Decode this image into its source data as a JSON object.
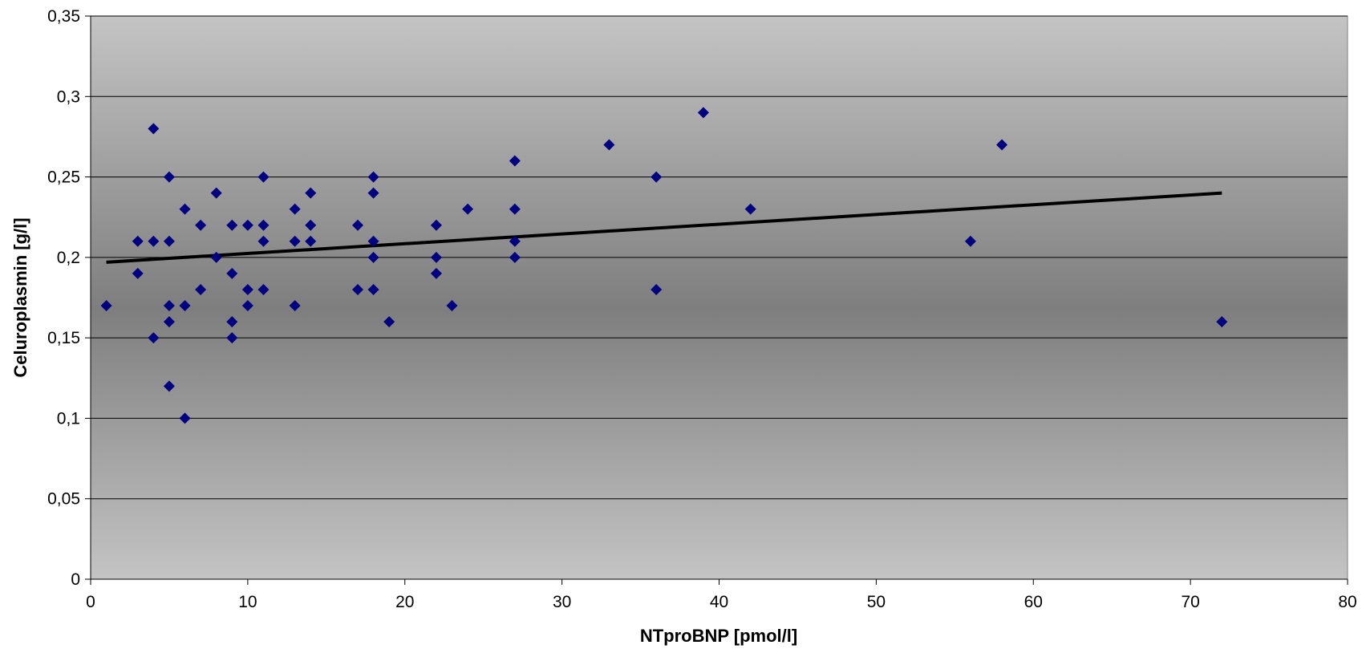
{
  "chart_data": {
    "type": "scatter",
    "xlabel": "NTproBNP [pmol/l]",
    "ylabel": "Celuroplasmin [g/l]",
    "xlim": [
      0,
      80
    ],
    "ylim": [
      0,
      0.35
    ],
    "x_ticks": [
      0,
      10,
      20,
      30,
      40,
      50,
      60,
      70,
      80
    ],
    "y_ticks": [
      0,
      0.05,
      0.1,
      0.15,
      0.2,
      0.25,
      0.3,
      0.35
    ],
    "x_tick_labels": [
      "0",
      "10",
      "20",
      "30",
      "40",
      "50",
      "60",
      "70",
      "80"
    ],
    "y_tick_labels": [
      "0",
      "0,05",
      "0,1",
      "0,15",
      "0,2",
      "0,25",
      "0,3",
      "0,35"
    ],
    "grid": "horizontal",
    "legend": "none",
    "marker_color": "#000080",
    "trendline": {
      "type": "linear",
      "x": [
        1,
        72
      ],
      "y": [
        0.197,
        0.24
      ],
      "color": "#000000"
    },
    "points": [
      [
        1,
        0.17
      ],
      [
        3,
        0.21
      ],
      [
        3,
        0.19
      ],
      [
        4,
        0.28
      ],
      [
        4,
        0.21
      ],
      [
        4,
        0.15
      ],
      [
        5,
        0.25
      ],
      [
        5,
        0.21
      ],
      [
        5,
        0.17
      ],
      [
        5,
        0.16
      ],
      [
        5,
        0.12
      ],
      [
        6,
        0.23
      ],
      [
        6,
        0.17
      ],
      [
        6,
        0.1
      ],
      [
        7,
        0.22
      ],
      [
        7,
        0.18
      ],
      [
        8,
        0.24
      ],
      [
        8,
        0.2
      ],
      [
        9,
        0.22
      ],
      [
        9,
        0.19
      ],
      [
        9,
        0.16
      ],
      [
        9,
        0.15
      ],
      [
        10,
        0.22
      ],
      [
        10,
        0.18
      ],
      [
        10,
        0.17
      ],
      [
        11,
        0.25
      ],
      [
        11,
        0.22
      ],
      [
        11,
        0.21
      ],
      [
        11,
        0.18
      ],
      [
        13,
        0.23
      ],
      [
        13,
        0.21
      ],
      [
        13,
        0.17
      ],
      [
        14,
        0.24
      ],
      [
        14,
        0.22
      ],
      [
        14,
        0.21
      ],
      [
        17,
        0.22
      ],
      [
        17,
        0.18
      ],
      [
        18,
        0.25
      ],
      [
        18,
        0.24
      ],
      [
        18,
        0.21
      ],
      [
        18,
        0.2
      ],
      [
        18,
        0.18
      ],
      [
        19,
        0.16
      ],
      [
        22,
        0.22
      ],
      [
        22,
        0.2
      ],
      [
        22,
        0.19
      ],
      [
        23,
        0.17
      ],
      [
        24,
        0.23
      ],
      [
        27,
        0.26
      ],
      [
        27,
        0.23
      ],
      [
        27,
        0.21
      ],
      [
        27,
        0.2
      ],
      [
        33,
        0.27
      ],
      [
        36,
        0.25
      ],
      [
        36,
        0.18
      ],
      [
        39,
        0.29
      ],
      [
        42,
        0.23
      ],
      [
        56,
        0.21
      ],
      [
        58,
        0.27
      ],
      [
        72,
        0.16
      ]
    ]
  }
}
